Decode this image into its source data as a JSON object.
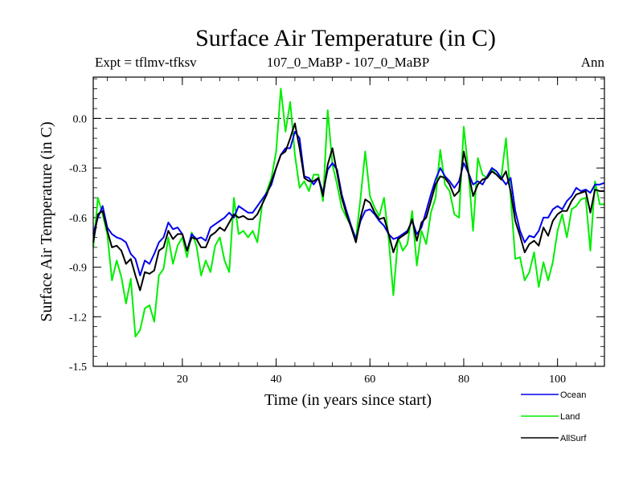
{
  "chart_data": {
    "type": "line",
    "title": "Surface Air Temperature (in C)",
    "subtitle_left": "Expt = tflmv-tfksv",
    "subtitle_center": "107_0_MaBP - 107_0_MaBP",
    "subtitle_right": "Ann",
    "xlabel": "Time (in years since start)",
    "ylabel": "Surface Air Temperature (in C)",
    "xlim": [
      1,
      110
    ],
    "ylim": [
      -1.5,
      0.25
    ],
    "x_ticks": [
      20,
      40,
      60,
      80,
      100
    ],
    "x_tick_labels": [
      "20",
      "40",
      "60",
      "80",
      "100"
    ],
    "y_ticks": [
      0.0,
      -0.3,
      -0.6,
      -0.9,
      -1.2,
      -1.5
    ],
    "y_tick_labels": [
      "0.0",
      "-0.3",
      "-0.6",
      "-0.9",
      "-1.2",
      "-1.5"
    ],
    "reference_line": 0.0,
    "x_start": 1,
    "series": [
      {
        "name": "Ocean",
        "color": "#0000ee",
        "values": [
          -0.7,
          -0.6,
          -0.53,
          -0.66,
          -0.7,
          -0.72,
          -0.73,
          -0.75,
          -0.82,
          -0.85,
          -0.95,
          -0.86,
          -0.88,
          -0.82,
          -0.75,
          -0.72,
          -0.63,
          -0.67,
          -0.66,
          -0.7,
          -0.8,
          -0.7,
          -0.73,
          -0.72,
          -0.74,
          -0.66,
          -0.64,
          -0.62,
          -0.6,
          -0.57,
          -0.6,
          -0.53,
          -0.55,
          -0.57,
          -0.57,
          -0.53,
          -0.49,
          -0.45,
          -0.4,
          -0.3,
          -0.22,
          -0.18,
          -0.18,
          -0.08,
          -0.12,
          -0.35,
          -0.36,
          -0.4,
          -0.36,
          -0.45,
          -0.31,
          -0.27,
          -0.31,
          -0.46,
          -0.56,
          -0.65,
          -0.73,
          -0.62,
          -0.56,
          -0.55,
          -0.58,
          -0.62,
          -0.65,
          -0.7,
          -0.73,
          -0.72,
          -0.7,
          -0.68,
          -0.62,
          -0.7,
          -0.66,
          -0.56,
          -0.46,
          -0.37,
          -0.3,
          -0.35,
          -0.38,
          -0.42,
          -0.38,
          -0.27,
          -0.33,
          -0.4,
          -0.38,
          -0.4,
          -0.35,
          -0.3,
          -0.32,
          -0.36,
          -0.4,
          -0.36,
          -0.56,
          -0.68,
          -0.75,
          -0.71,
          -0.72,
          -0.68,
          -0.6,
          -0.6,
          -0.55,
          -0.53,
          -0.55,
          -0.5,
          -0.47,
          -0.42,
          -0.44,
          -0.43,
          -0.45,
          -0.4,
          -0.4,
          -0.39
        ]
      },
      {
        "name": "Land",
        "color": "#00ee00",
        "values": [
          -0.78,
          -0.48,
          -0.58,
          -0.7,
          -0.98,
          -0.86,
          -0.96,
          -1.12,
          -0.97,
          -1.32,
          -1.28,
          -1.15,
          -1.13,
          -1.23,
          -0.95,
          -0.91,
          -0.72,
          -0.88,
          -0.77,
          -0.72,
          -0.84,
          -0.69,
          -0.77,
          -0.95,
          -0.86,
          -0.93,
          -0.77,
          -0.72,
          -0.86,
          -0.93,
          -0.48,
          -0.7,
          -0.68,
          -0.72,
          -0.68,
          -0.75,
          -0.52,
          -0.44,
          -0.36,
          -0.2,
          0.18,
          -0.08,
          0.1,
          -0.22,
          -0.42,
          -0.38,
          -0.44,
          -0.34,
          -0.34,
          -0.5,
          0.05,
          -0.28,
          -0.4,
          -0.54,
          -0.6,
          -0.65,
          -0.73,
          -0.48,
          -0.2,
          -0.47,
          -0.54,
          -0.59,
          -0.48,
          -0.73,
          -1.07,
          -0.72,
          -0.8,
          -0.76,
          -0.56,
          -0.89,
          -0.68,
          -0.76,
          -0.57,
          -0.48,
          -0.19,
          -0.4,
          -0.44,
          -0.58,
          -0.6,
          -0.05,
          -0.32,
          -0.68,
          -0.24,
          -0.34,
          -0.36,
          -0.31,
          -0.34,
          -0.36,
          -0.12,
          -0.47,
          -0.85,
          -0.84,
          -0.98,
          -0.93,
          -0.81,
          -1.02,
          -0.87,
          -0.98,
          -0.87,
          -0.68,
          -0.58,
          -0.72,
          -0.55,
          -0.53,
          -0.49,
          -0.48,
          -0.8,
          -0.38,
          -0.52,
          -0.52
        ]
      },
      {
        "name": "AllSurf",
        "color": "#000000",
        "values": [
          -0.75,
          -0.58,
          -0.56,
          -0.68,
          -0.78,
          -0.77,
          -0.8,
          -0.88,
          -0.85,
          -0.95,
          -1.04,
          -0.93,
          -0.94,
          -0.92,
          -0.8,
          -0.78,
          -0.68,
          -0.73,
          -0.7,
          -0.7,
          -0.8,
          -0.72,
          -0.73,
          -0.78,
          -0.78,
          -0.71,
          -0.69,
          -0.66,
          -0.68,
          -0.63,
          -0.58,
          -0.6,
          -0.59,
          -0.61,
          -0.61,
          -0.58,
          -0.52,
          -0.46,
          -0.38,
          -0.3,
          -0.22,
          -0.2,
          -0.12,
          -0.03,
          -0.18,
          -0.36,
          -0.38,
          -0.38,
          -0.36,
          -0.47,
          -0.28,
          -0.18,
          -0.33,
          -0.48,
          -0.58,
          -0.66,
          -0.75,
          -0.6,
          -0.49,
          -0.51,
          -0.57,
          -0.61,
          -0.6,
          -0.7,
          -0.81,
          -0.73,
          -0.71,
          -0.69,
          -0.61,
          -0.74,
          -0.63,
          -0.6,
          -0.5,
          -0.4,
          -0.35,
          -0.36,
          -0.4,
          -0.47,
          -0.44,
          -0.2,
          -0.33,
          -0.47,
          -0.4,
          -0.37,
          -0.36,
          -0.32,
          -0.34,
          -0.37,
          -0.32,
          -0.44,
          -0.62,
          -0.71,
          -0.81,
          -0.76,
          -0.74,
          -0.77,
          -0.66,
          -0.71,
          -0.62,
          -0.58,
          -0.56,
          -0.56,
          -0.5,
          -0.46,
          -0.45,
          -0.44,
          -0.57,
          -0.43,
          -0.44,
          -0.44
        ]
      }
    ],
    "legend": [
      {
        "label": "Ocean",
        "color": "#0000ee"
      },
      {
        "label": "Land",
        "color": "#00ee00"
      },
      {
        "label": "AllSurf",
        "color": "#000000"
      }
    ]
  }
}
